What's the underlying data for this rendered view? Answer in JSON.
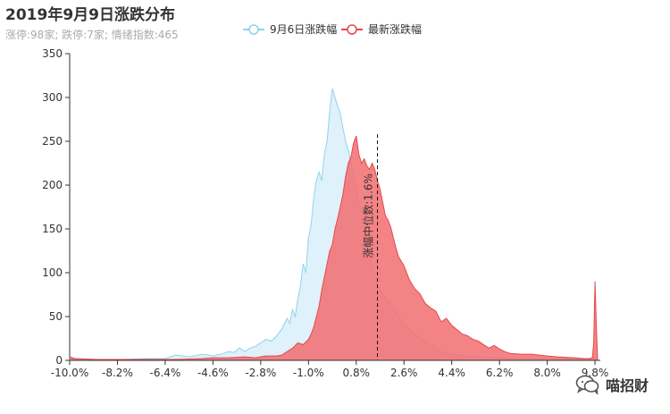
{
  "chart_data": {
    "type": "area",
    "title": "2019年9月9日涨跌分布",
    "subtitle": "涨停:98家; 跌停:7家; 情绪指数:465",
    "xlim": [
      -10,
      10
    ],
    "ylim": [
      0,
      350
    ],
    "y_ticks": [
      "0",
      "50",
      "100",
      "150",
      "200",
      "250",
      "300",
      "350"
    ],
    "x_ticks": [
      "-10.0%",
      "-8.2%",
      "-6.4%",
      "-4.6%",
      "-2.8%",
      "-1.0%",
      "0.8%",
      "2.6%",
      "4.4%",
      "6.2%",
      "8.0%",
      "9.8%"
    ],
    "x_tick_values": [
      -10.0,
      -8.2,
      -6.4,
      -4.6,
      -2.8,
      -1.0,
      0.8,
      2.6,
      4.4,
      6.2,
      8.0,
      9.8
    ],
    "legend_position": "top-center",
    "median": {
      "value": 1.6,
      "label": "涨幅中位数:1.6%"
    },
    "series": [
      {
        "name": "9月6日涨跌幅",
        "color": "#8fd3ee",
        "fill": "#dff1fa",
        "points": [
          [
            -10.0,
            2
          ],
          [
            -9.8,
            1
          ],
          [
            -9.0,
            1
          ],
          [
            -8.0,
            1
          ],
          [
            -7.0,
            2
          ],
          [
            -6.4,
            2
          ],
          [
            -6.0,
            6
          ],
          [
            -5.5,
            4
          ],
          [
            -5.0,
            7
          ],
          [
            -4.6,
            5
          ],
          [
            -4.2,
            8
          ],
          [
            -4.0,
            10
          ],
          [
            -3.8,
            9
          ],
          [
            -3.6,
            14
          ],
          [
            -3.4,
            10
          ],
          [
            -3.2,
            14
          ],
          [
            -3.0,
            16
          ],
          [
            -2.8,
            20
          ],
          [
            -2.6,
            24
          ],
          [
            -2.4,
            22
          ],
          [
            -2.2,
            28
          ],
          [
            -2.0,
            36
          ],
          [
            -1.8,
            48
          ],
          [
            -1.7,
            42
          ],
          [
            -1.6,
            58
          ],
          [
            -1.5,
            50
          ],
          [
            -1.4,
            70
          ],
          [
            -1.3,
            85
          ],
          [
            -1.2,
            110
          ],
          [
            -1.1,
            100
          ],
          [
            -1.0,
            140
          ],
          [
            -0.9,
            155
          ],
          [
            -0.8,
            185
          ],
          [
            -0.7,
            205
          ],
          [
            -0.6,
            215
          ],
          [
            -0.5,
            205
          ],
          [
            -0.4,
            235
          ],
          [
            -0.3,
            250
          ],
          [
            -0.2,
            285
          ],
          [
            -0.1,
            310
          ],
          [
            0.0,
            300
          ],
          [
            0.1,
            290
          ],
          [
            0.2,
            282
          ],
          [
            0.3,
            265
          ],
          [
            0.4,
            250
          ],
          [
            0.5,
            240
          ],
          [
            0.6,
            225
          ],
          [
            0.7,
            210
          ],
          [
            0.8,
            195
          ],
          [
            0.9,
            180
          ],
          [
            1.0,
            168
          ],
          [
            1.1,
            150
          ],
          [
            1.2,
            135
          ],
          [
            1.3,
            120
          ],
          [
            1.4,
            108
          ],
          [
            1.5,
            95
          ],
          [
            1.6,
            85
          ],
          [
            1.7,
            82
          ],
          [
            1.8,
            75
          ],
          [
            2.0,
            68
          ],
          [
            2.2,
            60
          ],
          [
            2.4,
            50
          ],
          [
            2.6,
            42
          ],
          [
            2.8,
            35
          ],
          [
            3.0,
            30
          ],
          [
            3.2,
            26
          ],
          [
            3.4,
            22
          ],
          [
            3.6,
            18
          ],
          [
            3.8,
            14
          ],
          [
            4.0,
            10
          ],
          [
            4.4,
            7
          ],
          [
            5.0,
            5
          ],
          [
            6.0,
            3
          ],
          [
            7.0,
            2
          ],
          [
            8.0,
            2
          ],
          [
            9.0,
            2
          ],
          [
            9.6,
            2
          ],
          [
            9.8,
            3
          ],
          [
            9.85,
            3
          ],
          [
            9.9,
            0
          ]
        ]
      },
      {
        "name": "最新涨跌幅",
        "color": "#e6494b",
        "fill": "#f26d70",
        "points": [
          [
            -10.0,
            4
          ],
          [
            -9.8,
            2
          ],
          [
            -9.0,
            1
          ],
          [
            -8.0,
            1
          ],
          [
            -7.0,
            1
          ],
          [
            -6.0,
            1
          ],
          [
            -5.0,
            2
          ],
          [
            -4.6,
            3
          ],
          [
            -4.0,
            3
          ],
          [
            -3.4,
            4
          ],
          [
            -3.0,
            3
          ],
          [
            -2.6,
            5
          ],
          [
            -2.2,
            5
          ],
          [
            -2.0,
            6
          ],
          [
            -1.8,
            10
          ],
          [
            -1.6,
            14
          ],
          [
            -1.4,
            20
          ],
          [
            -1.2,
            18
          ],
          [
            -1.0,
            24
          ],
          [
            -0.9,
            30
          ],
          [
            -0.8,
            38
          ],
          [
            -0.7,
            50
          ],
          [
            -0.6,
            62
          ],
          [
            -0.5,
            80
          ],
          [
            -0.4,
            95
          ],
          [
            -0.3,
            110
          ],
          [
            -0.2,
            125
          ],
          [
            -0.1,
            132
          ],
          [
            0.0,
            150
          ],
          [
            0.1,
            162
          ],
          [
            0.2,
            175
          ],
          [
            0.3,
            190
          ],
          [
            0.4,
            210
          ],
          [
            0.5,
            225
          ],
          [
            0.6,
            232
          ],
          [
            0.7,
            248
          ],
          [
            0.8,
            256
          ],
          [
            0.9,
            235
          ],
          [
            1.0,
            225
          ],
          [
            1.1,
            230
          ],
          [
            1.2,
            222
          ],
          [
            1.3,
            218
          ],
          [
            1.4,
            225
          ],
          [
            1.5,
            218
          ],
          [
            1.6,
            205
          ],
          [
            1.7,
            195
          ],
          [
            1.8,
            180
          ],
          [
            1.9,
            165
          ],
          [
            2.0,
            160
          ],
          [
            2.1,
            152
          ],
          [
            2.2,
            140
          ],
          [
            2.3,
            128
          ],
          [
            2.4,
            118
          ],
          [
            2.6,
            108
          ],
          [
            2.8,
            92
          ],
          [
            3.0,
            82
          ],
          [
            3.2,
            76
          ],
          [
            3.4,
            65
          ],
          [
            3.6,
            60
          ],
          [
            3.8,
            56
          ],
          [
            4.0,
            44
          ],
          [
            4.2,
            48
          ],
          [
            4.4,
            40
          ],
          [
            4.6,
            35
          ],
          [
            4.8,
            30
          ],
          [
            5.0,
            28
          ],
          [
            5.2,
            24
          ],
          [
            5.4,
            22
          ],
          [
            5.6,
            18
          ],
          [
            5.8,
            14
          ],
          [
            6.0,
            17
          ],
          [
            6.2,
            13
          ],
          [
            6.4,
            10
          ],
          [
            6.6,
            8
          ],
          [
            7.0,
            7
          ],
          [
            7.4,
            7
          ],
          [
            8.0,
            5
          ],
          [
            8.4,
            4
          ],
          [
            9.0,
            3
          ],
          [
            9.4,
            2
          ],
          [
            9.6,
            2
          ],
          [
            9.7,
            3
          ],
          [
            9.75,
            20
          ],
          [
            9.8,
            90
          ],
          [
            9.85,
            40
          ],
          [
            9.9,
            0
          ]
        ]
      }
    ]
  },
  "watermark": {
    "text": "喵招财",
    "icon": "wechat-icon"
  }
}
